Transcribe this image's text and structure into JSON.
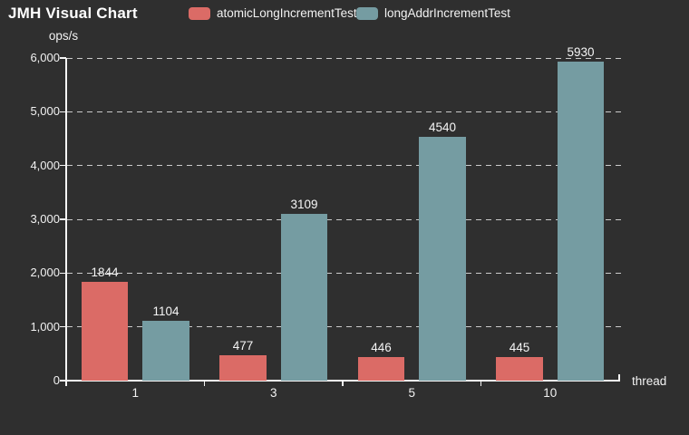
{
  "header": {
    "title": "JMH Visual Chart"
  },
  "colors": {
    "background": "#2f2f2f",
    "text": "#f2f2f2",
    "axis": "#f5f5f5",
    "gridline": "rgba(255,255,255,0.75)",
    "series_red": "#db6b66",
    "series_teal": "#759ca2"
  },
  "chart_data": {
    "type": "bar",
    "title": "JMH Visual Chart",
    "xlabel": "thread",
    "ylabel": "ops/s",
    "categories": [
      "1",
      "3",
      "5",
      "10"
    ],
    "series": [
      {
        "name": "atomicLongIncrementTest",
        "color": "#db6b66",
        "values": [
          1844,
          477,
          446,
          445
        ]
      },
      {
        "name": "longAddrIncrementTest",
        "color": "#759ca2",
        "values": [
          1104,
          3109,
          4540,
          5930
        ]
      }
    ],
    "ylim": [
      0,
      6000
    ],
    "ytick_step": 1000,
    "ytick_labels": [
      "0",
      "1,000",
      "2,000",
      "3,000",
      "4,000",
      "5,000",
      "6,000"
    ],
    "grid": "horizontal-dashed",
    "legend_position": "top",
    "value_labels": "above-bars"
  }
}
